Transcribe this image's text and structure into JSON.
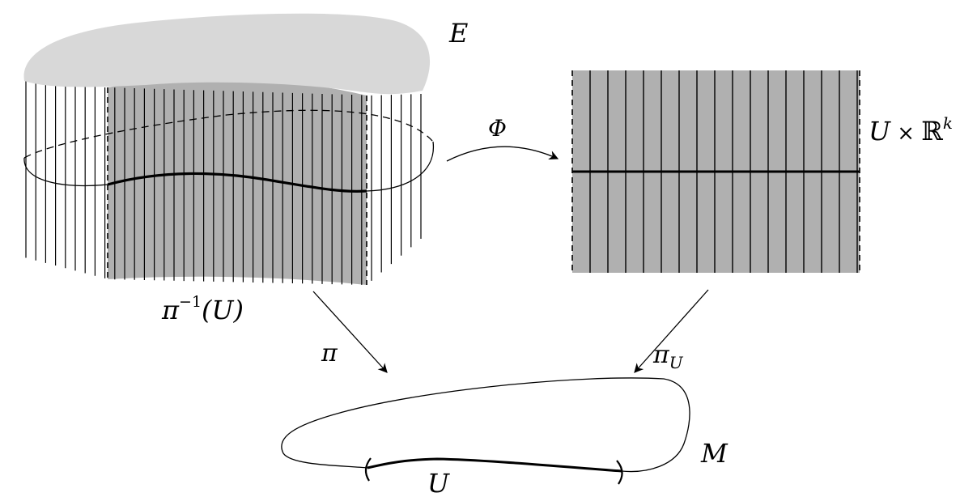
{
  "labels": {
    "total_space": "E",
    "trivialization_map": "Φ",
    "product_base": "U",
    "product_times": " × ",
    "product_fiber": "ℝ",
    "product_exponent": "k",
    "preimage_symbol": "π",
    "preimage_exponent": "−1",
    "preimage_arg": "(U)",
    "projection": "π",
    "projection_U_symbol": "π",
    "projection_U_subscript": "U",
    "base_manifold": "M",
    "open_set": "U"
  },
  "colors": {
    "top_face": "#d8d8d8",
    "shaded_region": "#b0b0b0",
    "ink": "#000000"
  }
}
